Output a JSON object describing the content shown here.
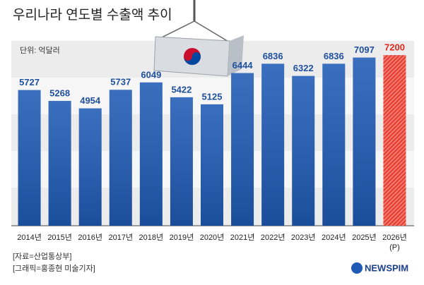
{
  "chart_data": {
    "type": "bar",
    "title": "우리나라 연도별 수출액 추이",
    "unit_label": "단위: 억달러",
    "categories": [
      "2014년",
      "2015년",
      "2016년",
      "2017년",
      "2018년",
      "2019년",
      "2020년",
      "2021년",
      "2022년",
      "2023년",
      "2024년",
      "2025년",
      "2026년"
    ],
    "category_note": "(P)",
    "values": [
      5727,
      5268,
      4954,
      5737,
      6049,
      5422,
      5125,
      6444,
      6836,
      6322,
      6836,
      7097,
      7200
    ],
    "colors": [
      "#1f5bb5",
      "#1f5bb5",
      "#1f5bb5",
      "#1f5bb5",
      "#1f5bb5",
      "#1f5bb5",
      "#1f5bb5",
      "#1f5bb5",
      "#1f5bb5",
      "#1f5bb5",
      "#1f5bb5",
      "#1f5bb5",
      "#e8392b"
    ],
    "ylim": [
      0,
      7800
    ],
    "source": "[자료=산업통상부]",
    "credit": "[그래픽=홍종현 미술기자]",
    "logo": "NEWSPIM"
  }
}
